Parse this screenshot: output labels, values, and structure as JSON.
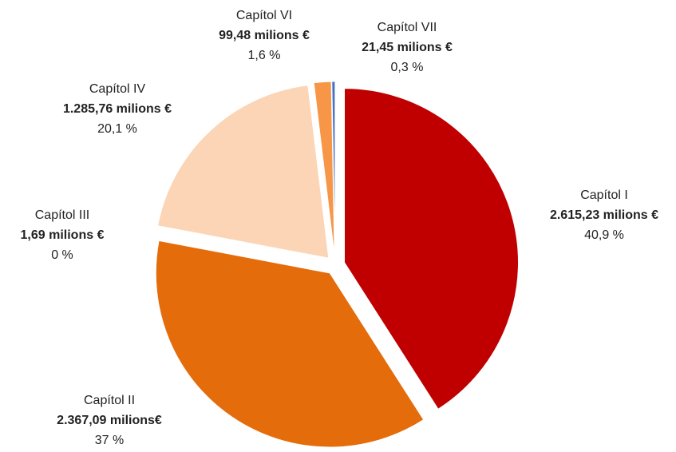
{
  "chart_data": {
    "type": "pie",
    "categories": [
      "Capítol I",
      "Capítol II",
      "Capítol III",
      "Capítol IV",
      "Capítol VI",
      "Capítol VII"
    ],
    "values": [
      40.9,
      37,
      0,
      20.1,
      1.6,
      0.3
    ],
    "value_labels": [
      "40,9 %",
      "37 %",
      "0 %",
      "20,1 %",
      "1,6 %",
      "0,3 %"
    ],
    "amount_labels": [
      "2.615,23 milions €",
      "2.367,09 milions€",
      "1,69 milions €",
      "1.285,76 milions €",
      "99,48 milions €",
      "21,45 milions €"
    ],
    "colors": [
      "#c00000",
      "#e46c0a",
      "#c55a11",
      "#fbd5b5",
      "#f79646",
      "#4472c4"
    ]
  }
}
